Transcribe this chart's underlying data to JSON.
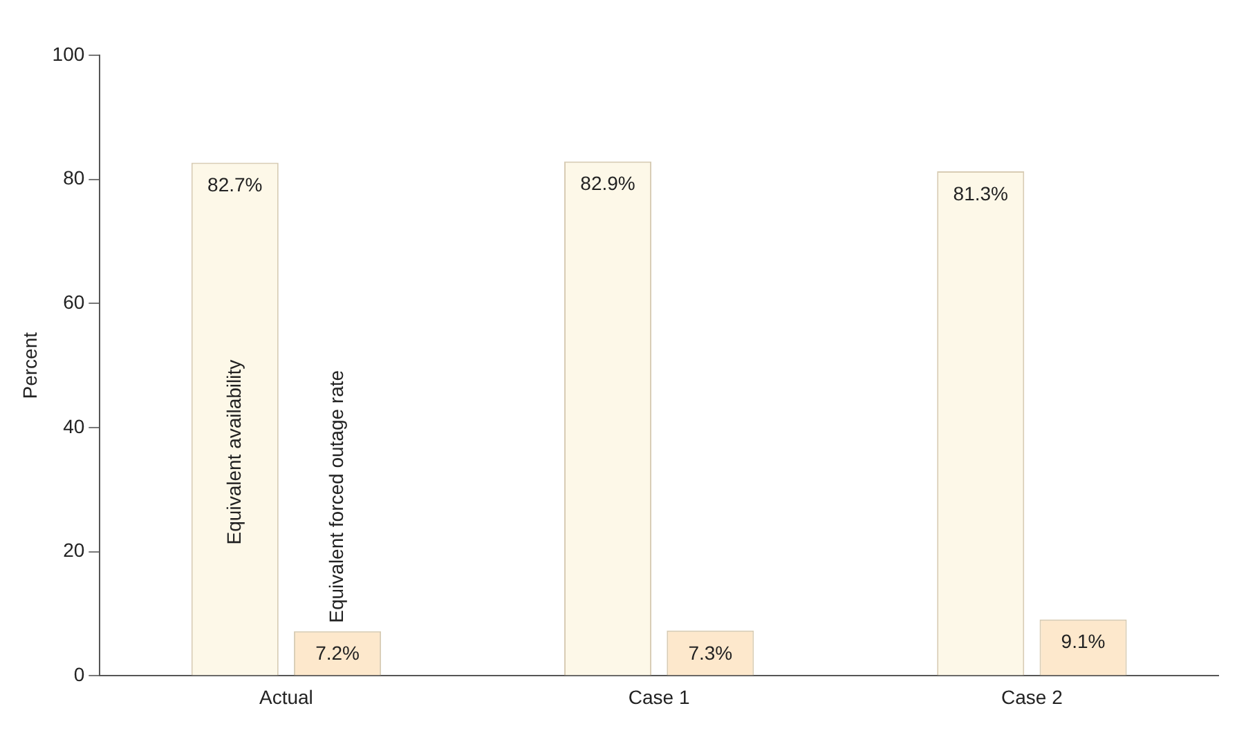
{
  "chart_data": {
    "type": "bar",
    "ylabel": "Percent",
    "categories": [
      "Actual",
      "Case 1",
      "Case 2"
    ],
    "series": [
      {
        "name": "Equivalent availability",
        "color": "#fdf8e8",
        "values": [
          82.7,
          82.9,
          81.3
        ],
        "value_labels": [
          "82.7%",
          "82.9%",
          "81.3%"
        ]
      },
      {
        "name": "Equivalent forced outage rate",
        "color": "#fde8cc",
        "values": [
          7.2,
          7.3,
          9.1
        ],
        "value_labels": [
          "7.2%",
          "7.3%",
          "9.1%"
        ]
      }
    ],
    "ylim": [
      0,
      100
    ],
    "yticks": [
      0,
      20,
      40,
      60,
      80,
      100
    ],
    "grid": false,
    "legend": false
  }
}
